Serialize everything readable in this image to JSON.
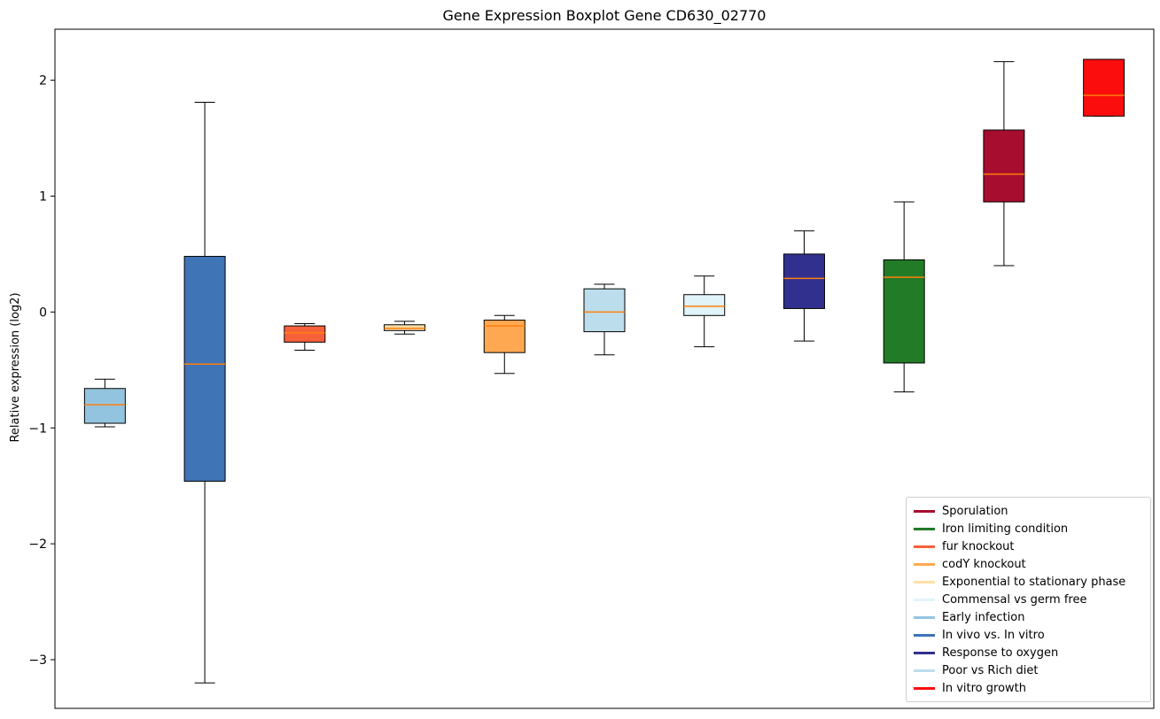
{
  "chart_data": {
    "type": "boxplot",
    "title": "Gene Expression Boxplot Gene CD630_02770",
    "xlabel": "",
    "ylabel": "Relative expression (log2)",
    "ylim": [
      -3.42,
      2.44
    ],
    "yticks": [
      2,
      1,
      0,
      -1,
      -2,
      -3
    ],
    "grid": false,
    "legend_position": "lower right",
    "median_color": "#ff7f0e",
    "boxes": [
      {
        "label": "Early infection",
        "color": "#93C4DF",
        "whislo": -0.99,
        "q1": -0.96,
        "med": -0.8,
        "q3": -0.66,
        "whishi": -0.58
      },
      {
        "label": "In vivo vs. In vitro",
        "color": "#3F74B6",
        "whislo": -3.2,
        "q1": -1.46,
        "med": -0.45,
        "q3": 0.48,
        "whishi": 1.81
      },
      {
        "label": "fur knockout",
        "color": "#F6613B",
        "whislo": -0.33,
        "q1": -0.26,
        "med": -0.18,
        "q3": -0.12,
        "whishi": -0.1
      },
      {
        "label": "Exponential to stationary phase",
        "color": "#FFE0A8",
        "whislo": -0.19,
        "q1": -0.16,
        "med": -0.14,
        "q3": -0.11,
        "whishi": -0.08
      },
      {
        "label": "codY knockout",
        "color": "#FFA852",
        "whislo": -0.53,
        "q1": -0.35,
        "med": -0.12,
        "q3": -0.07,
        "whishi": -0.03
      },
      {
        "label": "Poor vs Rich diet",
        "color": "#BCDDEB",
        "whislo": -0.37,
        "q1": -0.17,
        "med": 0.0,
        "q3": 0.2,
        "whishi": 0.24
      },
      {
        "label": "Commensal vs germ free",
        "color": "#E1F4F9",
        "whislo": -0.3,
        "q1": -0.03,
        "med": 0.05,
        "q3": 0.15,
        "whishi": 0.31
      },
      {
        "label": "Response to oxygen",
        "color": "#32308F",
        "whislo": -0.25,
        "q1": 0.03,
        "med": 0.29,
        "q3": 0.5,
        "whishi": 0.7
      },
      {
        "label": "Iron limiting condition",
        "color": "#227B27",
        "whislo": -0.69,
        "q1": -0.44,
        "med": 0.3,
        "q3": 0.45,
        "whishi": 0.95
      },
      {
        "label": "Sporulation",
        "color": "#A60D2F",
        "whislo": 0.4,
        "q1": 0.95,
        "med": 1.19,
        "q3": 1.57,
        "whishi": 2.16
      },
      {
        "label": "In vitro growth",
        "color": "#FB0D0D",
        "whislo": 1.69,
        "q1": 1.69,
        "med": 1.87,
        "q3": 2.18,
        "whishi": 2.18
      }
    ],
    "legend": [
      {
        "label": "Sporulation",
        "color": "#A60D2F"
      },
      {
        "label": "Iron limiting condition",
        "color": "#227B27"
      },
      {
        "label": "fur knockout",
        "color": "#F6613B"
      },
      {
        "label": "codY knockout",
        "color": "#FFA852"
      },
      {
        "label": "Exponential to stationary phase",
        "color": "#FFE0A8"
      },
      {
        "label": "Commensal vs germ free",
        "color": "#E1F4F9"
      },
      {
        "label": "Early infection",
        "color": "#93C4DF"
      },
      {
        "label": "In vivo vs. In vitro",
        "color": "#3F74B6"
      },
      {
        "label": "Response to oxygen",
        "color": "#32308F"
      },
      {
        "label": "Poor vs Rich diet",
        "color": "#BCDDEB"
      },
      {
        "label": "In vitro growth",
        "color": "#FB0D0D"
      }
    ]
  }
}
